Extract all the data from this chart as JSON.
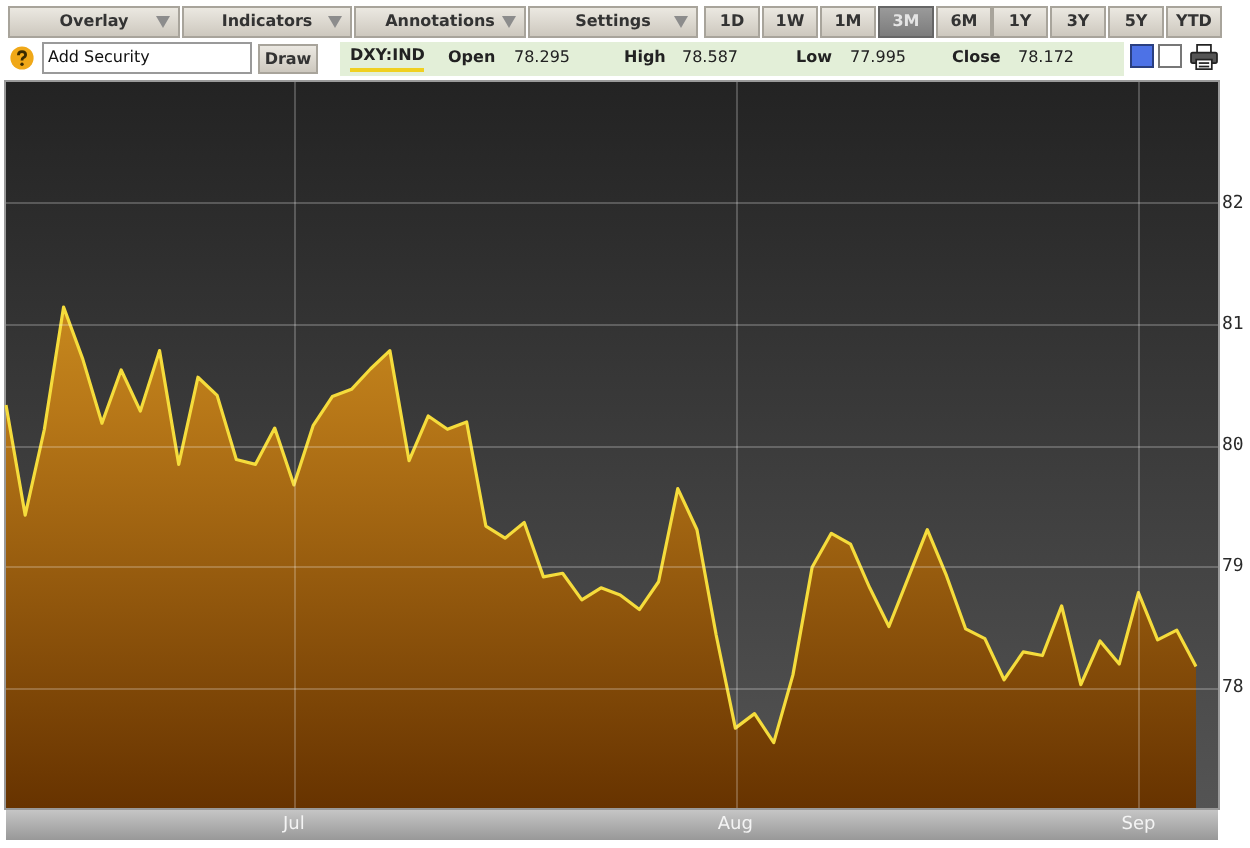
{
  "chart_data": {
    "type": "area",
    "title": "DXY:IND",
    "categories": [
      null,
      null,
      null,
      null,
      null,
      null,
      null,
      null,
      null,
      null,
      null,
      null,
      null,
      null,
      null,
      "Jul",
      null,
      null,
      null,
      null,
      null,
      null,
      null,
      null,
      null,
      null,
      null,
      null,
      null,
      null,
      null,
      null,
      null,
      null,
      null,
      null,
      null,
      null,
      "Aug",
      null,
      null,
      null,
      null,
      null,
      null,
      null,
      null,
      null,
      null,
      null,
      null,
      null,
      null,
      null,
      null,
      null,
      null,
      null,
      null,
      "Sep",
      null,
      null,
      null
    ],
    "values": [
      80.33,
      79.42,
      80.13,
      81.14,
      80.71,
      80.18,
      80.62,
      80.28,
      80.78,
      79.84,
      80.56,
      80.41,
      79.88,
      79.84,
      80.14,
      79.67,
      80.16,
      80.4,
      80.46,
      80.63,
      80.78,
      79.87,
      80.24,
      80.13,
      80.19,
      79.33,
      79.23,
      79.36,
      78.91,
      78.94,
      78.72,
      78.82,
      78.76,
      78.64,
      78.87,
      79.64,
      79.3,
      78.43,
      77.66,
      77.78,
      77.54,
      78.1,
      78.99,
      79.27,
      79.18,
      78.82,
      78.5,
      78.9,
      79.3,
      78.92,
      78.48,
      78.4,
      78.06,
      78.29,
      78.26,
      78.67,
      78.02,
      78.38,
      78.19,
      78.78,
      78.39,
      78.47,
      78.17
    ],
    "color": "#f5dc3c",
    "ylim": [
      77,
      83
    ],
    "yticks": [
      78,
      79,
      80,
      81,
      82
    ],
    "grid": true,
    "annotations": [
      "Overlay",
      "Indicators",
      "Annotations",
      "Settings",
      "1D",
      "1W",
      "1M",
      "3M",
      "6M",
      "1Y",
      "3Y",
      "5Y",
      "YTD",
      "Add Security",
      "Draw",
      "Open",
      "78.295",
      "High",
      "78.587",
      "Low",
      "77.995",
      "Close",
      "78.172"
    ]
  }
}
